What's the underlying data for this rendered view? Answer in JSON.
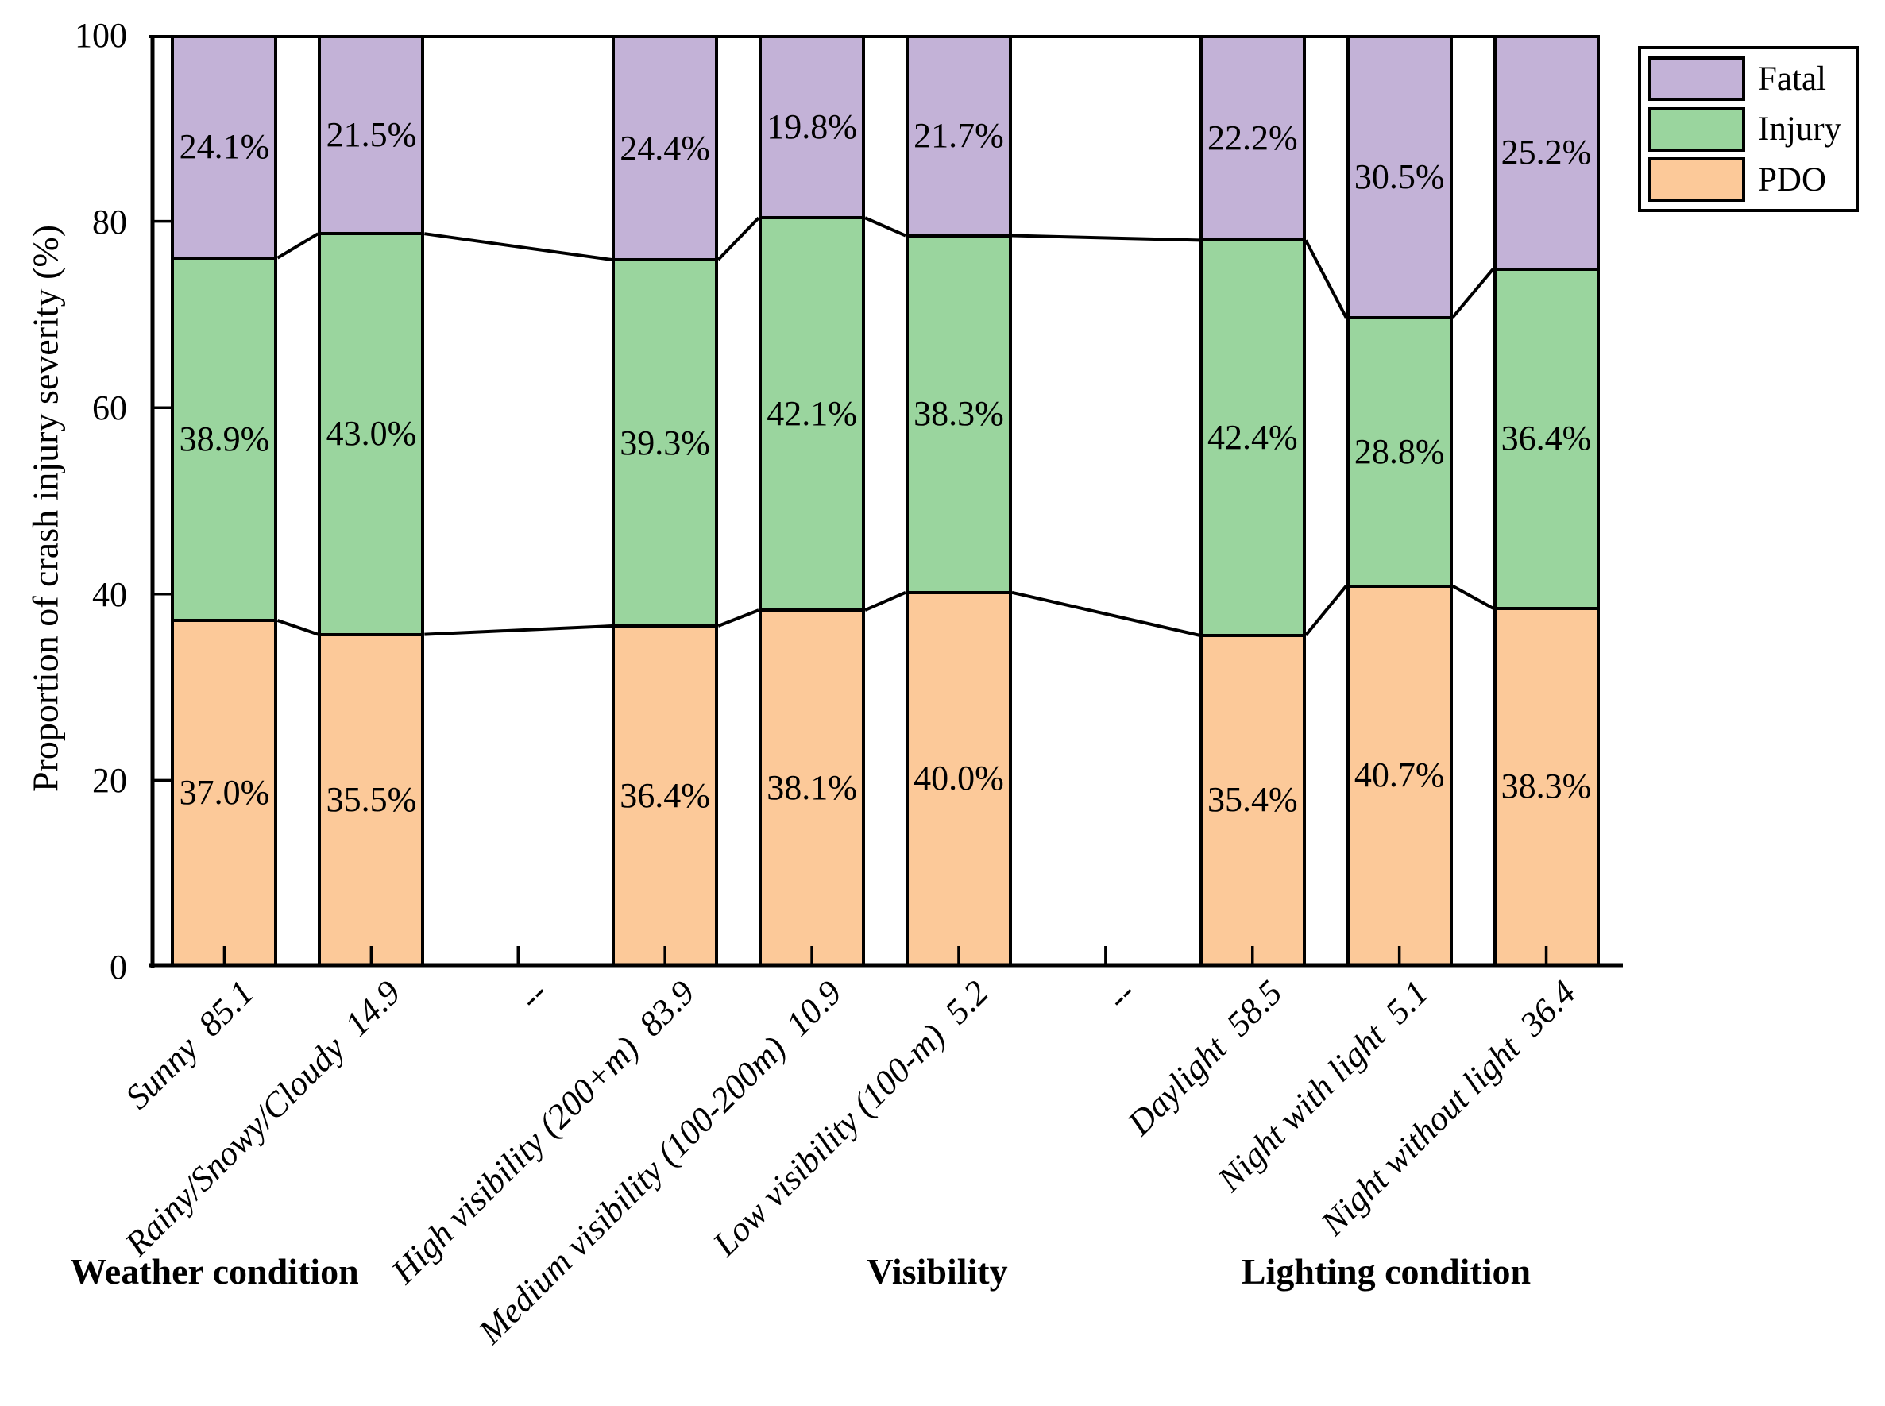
{
  "figure": {
    "background": "#FFFFFF"
  },
  "chart_data": {
    "type": "bar",
    "stacked": true,
    "title": "",
    "xlabel": "",
    "ylabel": "Proportion of crash injury severity (%)",
    "ylim": [
      0,
      100
    ],
    "yticks": [
      "0",
      "20",
      "40",
      "60",
      "80",
      "100"
    ],
    "grid": false,
    "bar_outline_color": "#000000",
    "boundary_connectors": true,
    "legend": {
      "position": "outside-top-right",
      "items": [
        {
          "label": "Fatal",
          "color": "#C3B2D7"
        },
        {
          "label": "Injury",
          "color": "#9AD59E"
        },
        {
          "label": "PDO",
          "color": "#FCC999"
        }
      ]
    },
    "categories": [
      "Sunny  85.1",
      "Rainy/Snowy/Cloudy  14.9",
      "--",
      "High visibility (200+m)  83.9",
      "Medium visibility (100-200m)  10.9",
      "Low visibility (100-m)  5.2",
      "--",
      "Daylight  58.5",
      "Night with light  5.1",
      "Night without light  36.4"
    ],
    "series": [
      {
        "name": "PDO",
        "color": "#FCC999",
        "values": [
          37.0,
          35.5,
          null,
          36.4,
          38.1,
          40.0,
          null,
          35.4,
          40.7,
          38.3
        ],
        "labels": [
          "37.0%",
          "35.5%",
          null,
          "36.4%",
          "38.1%",
          "40.0%",
          null,
          "35.4%",
          "40.7%",
          "38.3%"
        ]
      },
      {
        "name": "Injury",
        "color": "#9AD59E",
        "values": [
          38.9,
          43.0,
          null,
          39.3,
          42.1,
          38.3,
          null,
          42.4,
          28.8,
          36.4
        ],
        "labels": [
          "38.9%",
          "43.0%",
          null,
          "39.3%",
          "42.1%",
          "38.3%",
          null,
          "42.4%",
          "28.8%",
          "36.4%"
        ]
      },
      {
        "name": "Fatal",
        "color": "#C3B2D7",
        "values": [
          24.1,
          21.5,
          null,
          24.4,
          19.8,
          21.7,
          null,
          22.2,
          30.5,
          25.2
        ],
        "labels": [
          "24.1%",
          "21.5%",
          null,
          "24.4%",
          "19.8%",
          "21.7%",
          null,
          "22.2%",
          "30.5%",
          "25.2%"
        ]
      }
    ],
    "group_labels": [
      "Weather condition",
      "Visibility",
      "Lighting condition"
    ]
  }
}
